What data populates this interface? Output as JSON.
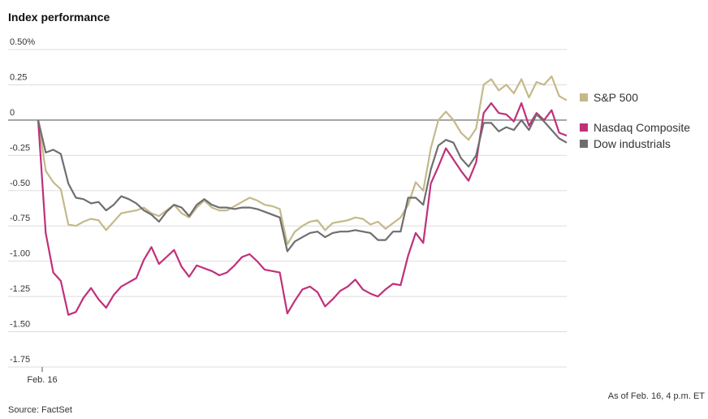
{
  "chart_data": {
    "type": "line",
    "title": "Index performance",
    "source": "Source: FactSet",
    "note": "As of Feb. 16, 4 p.m. ET",
    "categories": [
      "Feb. 16",
      null,
      null,
      null,
      null,
      null,
      null,
      null,
      null,
      null,
      null,
      null,
      null,
      null,
      null,
      null,
      null,
      null,
      null,
      null,
      null,
      null,
      null,
      null,
      null,
      null,
      null,
      null,
      null,
      null,
      null,
      null,
      null,
      null,
      null,
      null,
      null,
      null,
      null,
      null,
      null,
      null,
      null,
      null,
      null,
      null,
      null,
      null,
      null,
      null,
      null,
      null,
      null,
      null,
      null,
      null,
      null,
      null,
      null,
      null,
      null,
      null,
      null,
      null,
      null,
      null,
      null,
      null,
      null,
      null,
      null
    ],
    "ylim": [
      -1.75,
      0.5
    ],
    "yticks": [
      {
        "value": 0.5,
        "label": "0.50%"
      },
      0.25,
      0,
      -0.25,
      {
        "value": -0.5,
        "label": "-0.50"
      },
      -0.75,
      {
        "value": -1,
        "label": "-1.00"
      },
      -1.25,
      {
        "value": -1.5,
        "label": "-1.50"
      },
      -1.75
    ],
    "grid": true,
    "legend": "right",
    "series": [
      {
        "name": "S&P 500",
        "color": "#c4b98a",
        "values": [
          0,
          -0.36,
          -0.44,
          -0.49,
          -0.74,
          -0.75,
          -0.72,
          -0.7,
          -0.71,
          -0.78,
          -0.72,
          -0.66,
          -0.65,
          -0.64,
          -0.62,
          -0.66,
          -0.68,
          -0.64,
          -0.6,
          -0.66,
          -0.69,
          -0.62,
          -0.57,
          -0.62,
          -0.64,
          -0.64,
          -0.61,
          -0.58,
          -0.55,
          -0.57,
          -0.6,
          -0.61,
          -0.63,
          -0.88,
          -0.79,
          -0.75,
          -0.72,
          -0.71,
          -0.78,
          -0.73,
          -0.72,
          -0.71,
          -0.69,
          -0.7,
          -0.74,
          -0.72,
          -0.77,
          -0.73,
          -0.69,
          -0.6,
          -0.44,
          -0.5,
          -0.2,
          0.0,
          0.06,
          0.0,
          -0.09,
          -0.14,
          -0.06,
          0.25,
          0.29,
          0.21,
          0.25,
          0.19,
          0.29,
          0.16,
          0.27,
          0.25,
          0.31,
          0.17,
          0.14
        ]
      },
      {
        "name": "Nasdaq Composite",
        "color": "#c0307a",
        "values": [
          0,
          -0.8,
          -1.08,
          -1.14,
          -1.38,
          -1.36,
          -1.26,
          -1.19,
          -1.27,
          -1.33,
          -1.24,
          -1.18,
          -1.15,
          -1.12,
          -0.99,
          -0.9,
          -1.02,
          -0.97,
          -0.92,
          -1.04,
          -1.11,
          -1.03,
          -1.05,
          -1.07,
          -1.1,
          -1.08,
          -1.03,
          -0.97,
          -0.95,
          -1.0,
          -1.06,
          -1.07,
          -1.08,
          -1.37,
          -1.28,
          -1.2,
          -1.18,
          -1.22,
          -1.32,
          -1.27,
          -1.21,
          -1.18,
          -1.13,
          -1.2,
          -1.23,
          -1.25,
          -1.2,
          -1.16,
          -1.17,
          -0.96,
          -0.8,
          -0.87,
          -0.45,
          -0.33,
          -0.2,
          -0.28,
          -0.36,
          -0.43,
          -0.3,
          0.05,
          0.12,
          0.05,
          0.04,
          -0.01,
          0.12,
          -0.04,
          0.05,
          0.0,
          0.07,
          -0.09,
          -0.11
        ]
      },
      {
        "name": "Dow industrials",
        "color": "#6e6e6e",
        "values": [
          0,
          -0.23,
          -0.21,
          -0.24,
          -0.45,
          -0.55,
          -0.56,
          -0.59,
          -0.58,
          -0.64,
          -0.6,
          -0.54,
          -0.56,
          -0.59,
          -0.64,
          -0.67,
          -0.72,
          -0.65,
          -0.6,
          -0.62,
          -0.68,
          -0.6,
          -0.56,
          -0.6,
          -0.62,
          -0.62,
          -0.63,
          -0.62,
          -0.62,
          -0.63,
          -0.65,
          -0.67,
          -0.69,
          -0.93,
          -0.86,
          -0.83,
          -0.8,
          -0.79,
          -0.83,
          -0.8,
          -0.79,
          -0.79,
          -0.78,
          -0.79,
          -0.8,
          -0.85,
          -0.85,
          -0.79,
          -0.79,
          -0.55,
          -0.55,
          -0.6,
          -0.35,
          -0.18,
          -0.14,
          -0.16,
          -0.27,
          -0.33,
          -0.25,
          -0.02,
          -0.02,
          -0.08,
          -0.05,
          -0.07,
          0.0,
          -0.07,
          0.04,
          -0.01,
          -0.07,
          -0.13,
          -0.16
        ]
      }
    ]
  }
}
